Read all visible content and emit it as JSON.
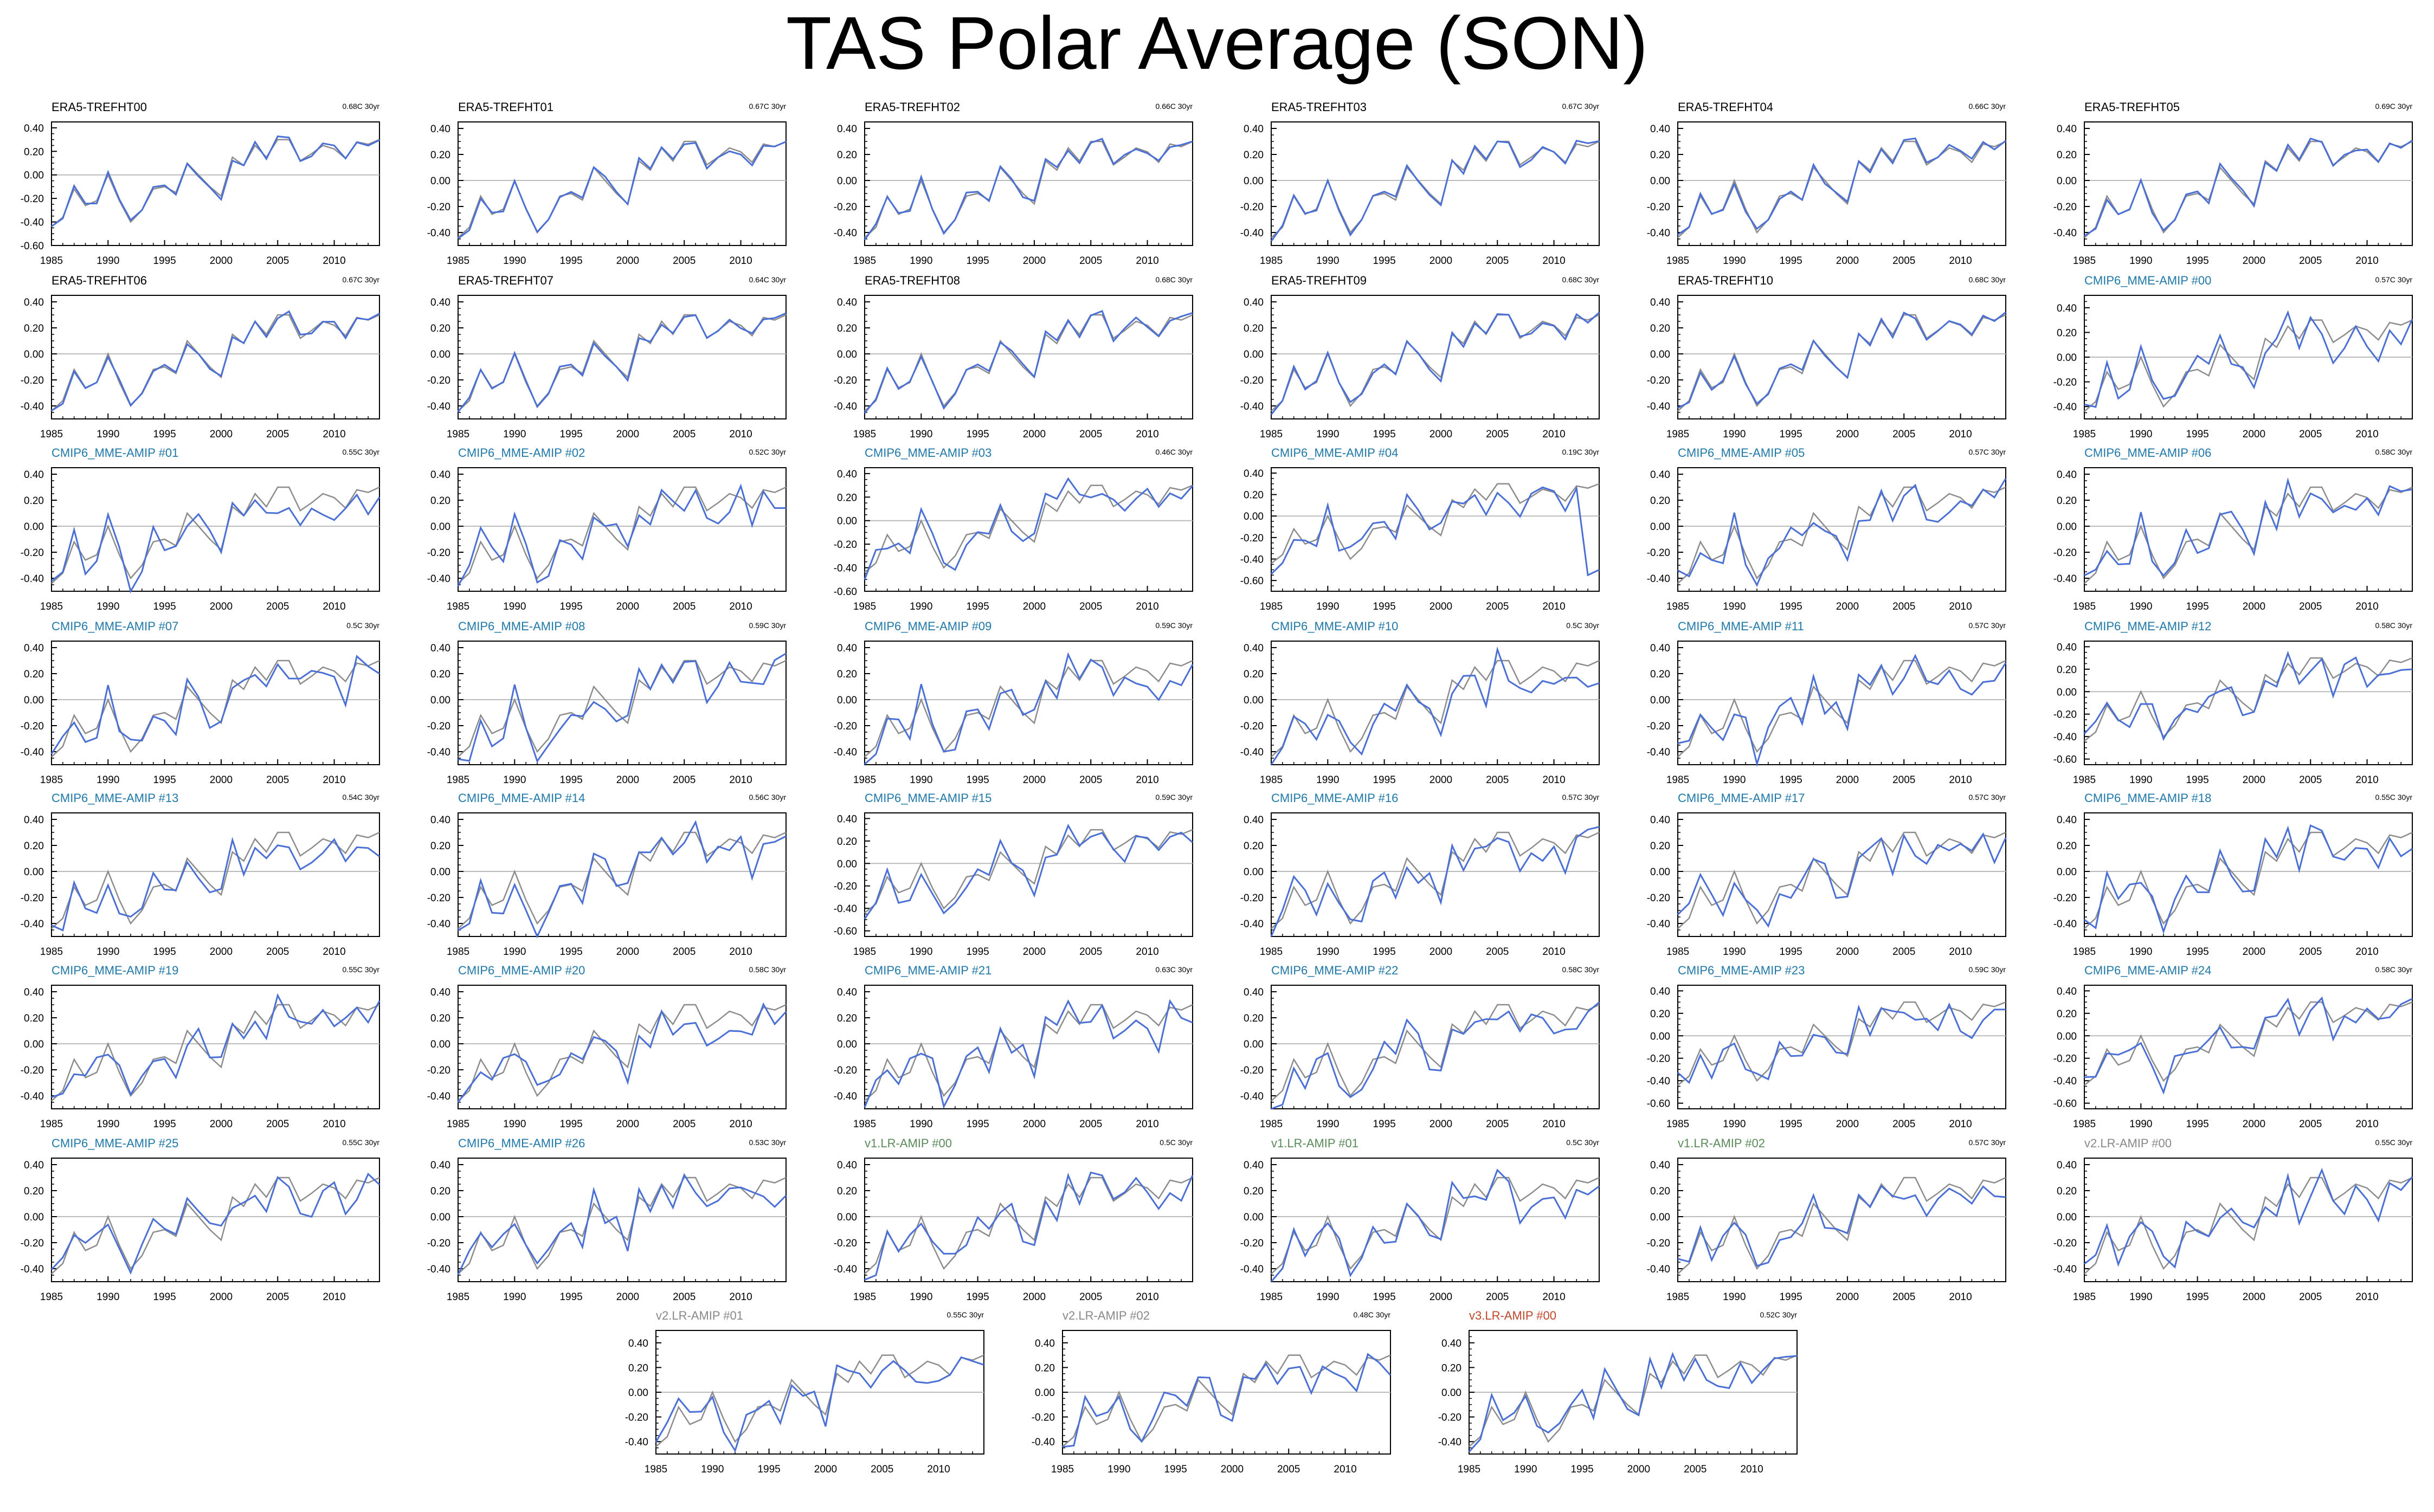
{
  "title": "TAS Polar Average (SON)",
  "colors": {
    "model_line": "#4a6fd6",
    "obs_line": "#8c8c8c",
    "zero_line": "#bbbbbb",
    "era5_title": "#000000",
    "cmip6_title": "#1f78a8",
    "v1_title": "#5a8a5a",
    "v2_title": "#888888",
    "v3_title": "#c0462a"
  },
  "chart_data": {
    "type": "line",
    "x": [
      1985,
      1986,
      1987,
      1988,
      1989,
      1990,
      1991,
      1992,
      1993,
      1994,
      1995,
      1996,
      1997,
      1998,
      1999,
      2000,
      2001,
      2002,
      2003,
      2004,
      2005,
      2006,
      2007,
      2008,
      2009,
      2010,
      2011,
      2012,
      2013,
      2014
    ],
    "x_ticks": [
      "1985",
      "1990",
      "1995",
      "2000",
      "2005",
      "2010"
    ],
    "y_ticks_std": [
      "0.40",
      "0.20",
      "0.00",
      "-0.20",
      "-0.40",
      "-0.60"
    ],
    "y_ticks_short": [
      "0.40",
      "0.20",
      "0.00",
      "-0.20",
      "-0.40"
    ],
    "reference_series": [
      -0.44,
      -0.36,
      -0.12,
      -0.26,
      -0.22,
      0.0,
      -0.22,
      -0.4,
      -0.3,
      -0.12,
      -0.1,
      -0.15,
      0.1,
      0.0,
      -0.1,
      -0.18,
      0.15,
      0.08,
      0.25,
      0.15,
      0.3,
      0.3,
      0.12,
      0.18,
      0.25,
      0.22,
      0.14,
      0.28,
      0.26,
      0.3
    ],
    "panels": [
      {
        "title": "ERA5-TREFHT00",
        "trend": "0.68C 30yr",
        "group": "era5",
        "ylim": [
          -0.6,
          0.45
        ],
        "seed": 1
      },
      {
        "title": "ERA5-TREFHT01",
        "trend": "0.67C 30yr",
        "group": "era5",
        "ylim": [
          -0.5,
          0.45
        ],
        "seed": 2
      },
      {
        "title": "ERA5-TREFHT02",
        "trend": "0.66C 30yr",
        "group": "era5",
        "ylim": [
          -0.5,
          0.45
        ],
        "seed": 3
      },
      {
        "title": "ERA5-TREFHT03",
        "trend": "0.67C 30yr",
        "group": "era5",
        "ylim": [
          -0.5,
          0.45
        ],
        "seed": 4
      },
      {
        "title": "ERA5-TREFHT04",
        "trend": "0.66C 30yr",
        "group": "era5",
        "ylim": [
          -0.5,
          0.45
        ],
        "seed": 5
      },
      {
        "title": "ERA5-TREFHT05",
        "trend": "0.69C 30yr",
        "group": "era5",
        "ylim": [
          -0.5,
          0.45
        ],
        "seed": 6
      },
      {
        "title": "ERA5-TREFHT06",
        "trend": "0.67C 30yr",
        "group": "era5",
        "ylim": [
          -0.5,
          0.45
        ],
        "seed": 7
      },
      {
        "title": "ERA5-TREFHT07",
        "trend": "0.64C 30yr",
        "group": "era5",
        "ylim": [
          -0.5,
          0.45
        ],
        "seed": 8
      },
      {
        "title": "ERA5-TREFHT08",
        "trend": "0.68C 30yr",
        "group": "era5",
        "ylim": [
          -0.5,
          0.45
        ],
        "seed": 9
      },
      {
        "title": "ERA5-TREFHT09",
        "trend": "0.68C 30yr",
        "group": "era5",
        "ylim": [
          -0.5,
          0.45
        ],
        "seed": 10
      },
      {
        "title": "ERA5-TREFHT10",
        "trend": "0.68C 30yr",
        "group": "era5",
        "ylim": [
          -0.5,
          0.45
        ],
        "seed": 11
      },
      {
        "title": "CMIP6_MME-AMIP  #00",
        "trend": "0.57C 30yr",
        "group": "cmip6",
        "ylim": [
          -0.5,
          0.5
        ],
        "seed": 12
      },
      {
        "title": "CMIP6_MME-AMIP  #01",
        "trend": "0.55C 30yr",
        "group": "cmip6",
        "ylim": [
          -0.5,
          0.45
        ],
        "seed": 13
      },
      {
        "title": "CMIP6_MME-AMIP  #02",
        "trend": "0.52C 30yr",
        "group": "cmip6",
        "ylim": [
          -0.5,
          0.45
        ],
        "seed": 14
      },
      {
        "title": "CMIP6_MME-AMIP  #03",
        "trend": "0.46C 30yr",
        "group": "cmip6",
        "ylim": [
          -0.6,
          0.45
        ],
        "seed": 15
      },
      {
        "title": "CMIP6_MME-AMIP  #04",
        "trend": "0.19C 30yr",
        "group": "cmip6",
        "ylim": [
          -0.7,
          0.45
        ],
        "seed": 16,
        "drop": true
      },
      {
        "title": "CMIP6_MME-AMIP  #05",
        "trend": "0.57C 30yr",
        "group": "cmip6",
        "ylim": [
          -0.5,
          0.45
        ],
        "seed": 17
      },
      {
        "title": "CMIP6_MME-AMIP  #06",
        "trend": "0.58C 30yr",
        "group": "cmip6",
        "ylim": [
          -0.5,
          0.45
        ],
        "seed": 18
      },
      {
        "title": "CMIP6_MME-AMIP  #07",
        "trend": "0.5C 30yr",
        "group": "cmip6",
        "ylim": [
          -0.5,
          0.45
        ],
        "seed": 19
      },
      {
        "title": "CMIP6_MME-AMIP  #08",
        "trend": "0.59C 30yr",
        "group": "cmip6",
        "ylim": [
          -0.5,
          0.45
        ],
        "seed": 20
      },
      {
        "title": "CMIP6_MME-AMIP  #09",
        "trend": "0.59C 30yr",
        "group": "cmip6",
        "ylim": [
          -0.5,
          0.45
        ],
        "seed": 21
      },
      {
        "title": "CMIP6_MME-AMIP  #10",
        "trend": "0.5C 30yr",
        "group": "cmip6",
        "ylim": [
          -0.5,
          0.45
        ],
        "seed": 22
      },
      {
        "title": "CMIP6_MME-AMIP  #11",
        "trend": "0.57C 30yr",
        "group": "cmip6",
        "ylim": [
          -0.5,
          0.45
        ],
        "seed": 23
      },
      {
        "title": "CMIP6_MME-AMIP  #12",
        "trend": "0.58C 30yr",
        "group": "cmip6",
        "ylim": [
          -0.65,
          0.45
        ],
        "seed": 24
      },
      {
        "title": "CMIP6_MME-AMIP  #13",
        "trend": "0.54C 30yr",
        "group": "cmip6",
        "ylim": [
          -0.5,
          0.45
        ],
        "seed": 25
      },
      {
        "title": "CMIP6_MME-AMIP  #14",
        "trend": "0.56C 30yr",
        "group": "cmip6",
        "ylim": [
          -0.5,
          0.45
        ],
        "seed": 26
      },
      {
        "title": "CMIP6_MME-AMIP  #15",
        "trend": "0.59C 30yr",
        "group": "cmip6",
        "ylim": [
          -0.65,
          0.45
        ],
        "seed": 27
      },
      {
        "title": "CMIP6_MME-AMIP  #16",
        "trend": "0.57C 30yr",
        "group": "cmip6",
        "ylim": [
          -0.5,
          0.45
        ],
        "seed": 28
      },
      {
        "title": "CMIP6_MME-AMIP  #17",
        "trend": "0.57C 30yr",
        "group": "cmip6",
        "ylim": [
          -0.5,
          0.45
        ],
        "seed": 29
      },
      {
        "title": "CMIP6_MME-AMIP  #18",
        "trend": "0.55C 30yr",
        "group": "cmip6",
        "ylim": [
          -0.5,
          0.45
        ],
        "seed": 30
      },
      {
        "title": "CMIP6_MME-AMIP  #19",
        "trend": "0.55C 30yr",
        "group": "cmip6",
        "ylim": [
          -0.5,
          0.45
        ],
        "seed": 31
      },
      {
        "title": "CMIP6_MME-AMIP  #20",
        "trend": "0.58C 30yr",
        "group": "cmip6",
        "ylim": [
          -0.5,
          0.45
        ],
        "seed": 32
      },
      {
        "title": "CMIP6_MME-AMIP  #21",
        "trend": "0.63C 30yr",
        "group": "cmip6",
        "ylim": [
          -0.5,
          0.45
        ],
        "seed": 33
      },
      {
        "title": "CMIP6_MME-AMIP  #22",
        "trend": "0.58C 30yr",
        "group": "cmip6",
        "ylim": [
          -0.5,
          0.45
        ],
        "seed": 34
      },
      {
        "title": "CMIP6_MME-AMIP  #23",
        "trend": "0.59C 30yr",
        "group": "cmip6",
        "ylim": [
          -0.65,
          0.45
        ],
        "seed": 35
      },
      {
        "title": "CMIP6_MME-AMIP  #24",
        "trend": "0.58C 30yr",
        "group": "cmip6",
        "ylim": [
          -0.65,
          0.45
        ],
        "seed": 36
      },
      {
        "title": "CMIP6_MME-AMIP  #25",
        "trend": "0.55C 30yr",
        "group": "cmip6",
        "ylim": [
          -0.5,
          0.45
        ],
        "seed": 37
      },
      {
        "title": "CMIP6_MME-AMIP  #26",
        "trend": "0.53C 30yr",
        "group": "cmip6",
        "ylim": [
          -0.5,
          0.45
        ],
        "seed": 38
      },
      {
        "title": "v1.LR-AMIP  #00",
        "trend": "0.5C 30yr",
        "group": "v1",
        "ylim": [
          -0.5,
          0.45
        ],
        "seed": 39
      },
      {
        "title": "v1.LR-AMIP  #01",
        "trend": "0.5C 30yr",
        "group": "v1",
        "ylim": [
          -0.5,
          0.45
        ],
        "seed": 40
      },
      {
        "title": "v1.LR-AMIP  #02",
        "trend": "0.57C 30yr",
        "group": "v1",
        "ylim": [
          -0.5,
          0.45
        ],
        "seed": 41
      },
      {
        "title": "v2.LR-AMIP  #00",
        "trend": "0.55C 30yr",
        "group": "v2",
        "ylim": [
          -0.5,
          0.45
        ],
        "seed": 42
      },
      {
        "title": "v2.LR-AMIP  #01",
        "trend": "0.55C 30yr",
        "group": "v2",
        "ylim": [
          -0.5,
          0.5
        ],
        "seed": 43
      },
      {
        "title": "v2.LR-AMIP  #02",
        "trend": "0.48C 30yr",
        "group": "v2",
        "ylim": [
          -0.5,
          0.5
        ],
        "seed": 44
      },
      {
        "title": "v3.LR-AMIP  #00",
        "trend": "0.52C 30yr",
        "group": "v3",
        "ylim": [
          -0.5,
          0.5
        ],
        "seed": 45
      }
    ]
  }
}
